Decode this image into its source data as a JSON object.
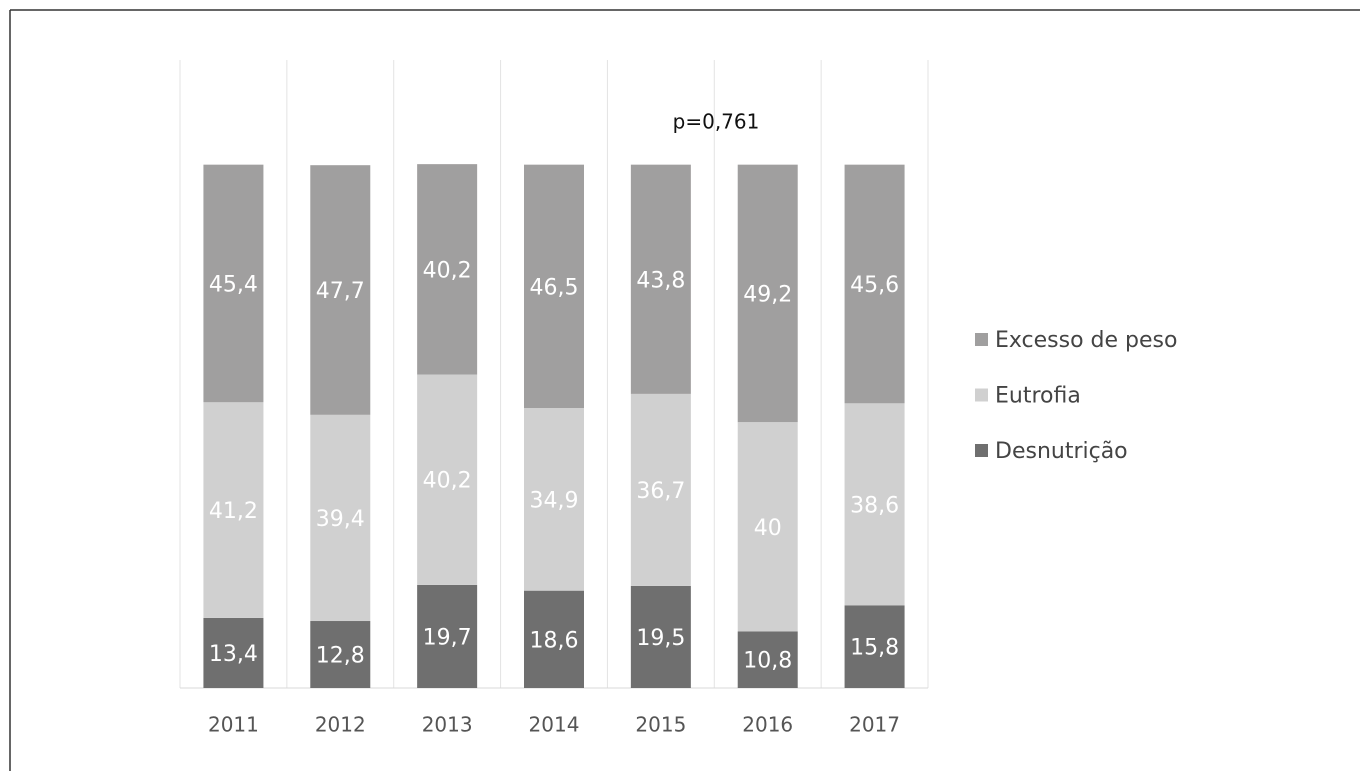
{
  "chart_data": {
    "type": "stacked_bar",
    "annotation": "p=0,761",
    "categories": [
      "2011",
      "2012",
      "2013",
      "2014",
      "2015",
      "2016",
      "2017"
    ],
    "series": [
      {
        "name": "Desnutrição",
        "color": "#6f6f6f",
        "values": [
          13.4,
          12.8,
          19.7,
          18.6,
          19.5,
          10.8,
          15.8
        ],
        "value_labels": [
          "13,4",
          "12,8",
          "19,7",
          "18,6",
          "19,5",
          "10,8",
          "15,8"
        ]
      },
      {
        "name": "Eutrofia",
        "color": "#d0d0d0",
        "values": [
          41.2,
          39.4,
          40.2,
          34.9,
          36.7,
          40,
          38.6
        ],
        "value_labels": [
          "41,2",
          "39,4",
          "40,2",
          "34,9",
          "36,7",
          "40",
          "38,6"
        ]
      },
      {
        "name": "Excesso de peso",
        "color": "#a09f9f",
        "values": [
          45.4,
          47.7,
          40.2,
          46.5,
          43.8,
          49.2,
          45.6
        ],
        "value_labels": [
          "45,4",
          "47,7",
          "40,2",
          "46,5",
          "43,8",
          "49,2",
          "45,6"
        ]
      }
    ],
    "ylim": [
      0,
      120
    ],
    "grid": true
  }
}
